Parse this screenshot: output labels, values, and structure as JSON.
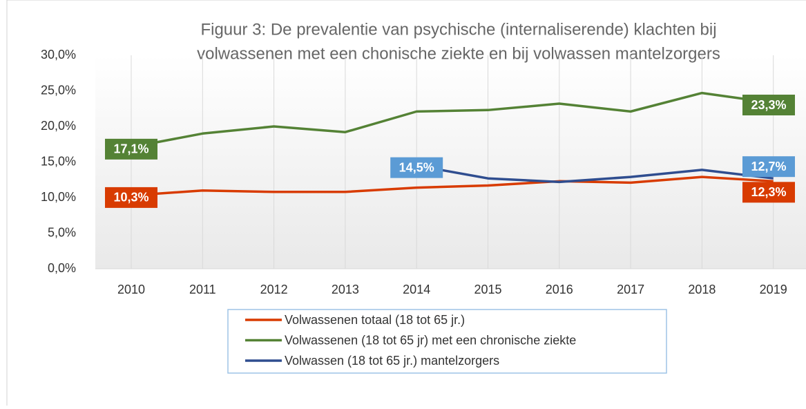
{
  "chart_data": {
    "type": "line",
    "title": [
      "Figuur 3: De prevalentie van psychische (internaliserende) klachten bij",
      "volwassenen met een chonische ziekte en bij volwassen mantelzorgers"
    ],
    "categories": [
      "2010",
      "2011",
      "2012",
      "2013",
      "2014",
      "2015",
      "2016",
      "2017",
      "2018",
      "2019"
    ],
    "series": [
      {
        "name": "Volwassenen totaal (18 tot 65 jr.)",
        "color": "#d83b01",
        "values": [
          10.3,
          11.0,
          10.8,
          10.8,
          11.4,
          11.7,
          12.3,
          12.1,
          12.9,
          12.3
        ],
        "value_labels": [
          "10,3%",
          null,
          null,
          null,
          null,
          null,
          null,
          null,
          null,
          "12,3%"
        ]
      },
      {
        "name": "Volwassenen (18 tot 65 jr) met een chronische ziekte",
        "color": "#548235",
        "values": [
          17.1,
          19.0,
          20.0,
          19.2,
          22.1,
          22.3,
          23.2,
          22.1,
          24.7,
          23.3
        ],
        "value_labels": [
          "17,1%",
          null,
          null,
          null,
          null,
          null,
          null,
          null,
          null,
          "23,3%"
        ]
      },
      {
        "name": "Volwassen (18 tot 65 jr.) mantelzorgers",
        "color": "#2f4d8f",
        "values": [
          null,
          null,
          null,
          null,
          14.5,
          12.7,
          12.2,
          12.9,
          13.9,
          12.7
        ],
        "value_labels": [
          null,
          null,
          null,
          null,
          "14,5%",
          null,
          null,
          null,
          null,
          "12,7%"
        ]
      }
    ],
    "ylim": [
      0,
      30
    ],
    "yticks": [
      {
        "value": 0,
        "label": "0,0%"
      },
      {
        "value": 5,
        "label": "5,0%"
      },
      {
        "value": 10,
        "label": "10,0%"
      },
      {
        "value": 15,
        "label": "15,0%"
      },
      {
        "value": 20,
        "label": "20,0%"
      },
      {
        "value": 25,
        "label": "25,0%"
      },
      {
        "value": 30,
        "label": "30,0%"
      }
    ],
    "grid": true
  }
}
